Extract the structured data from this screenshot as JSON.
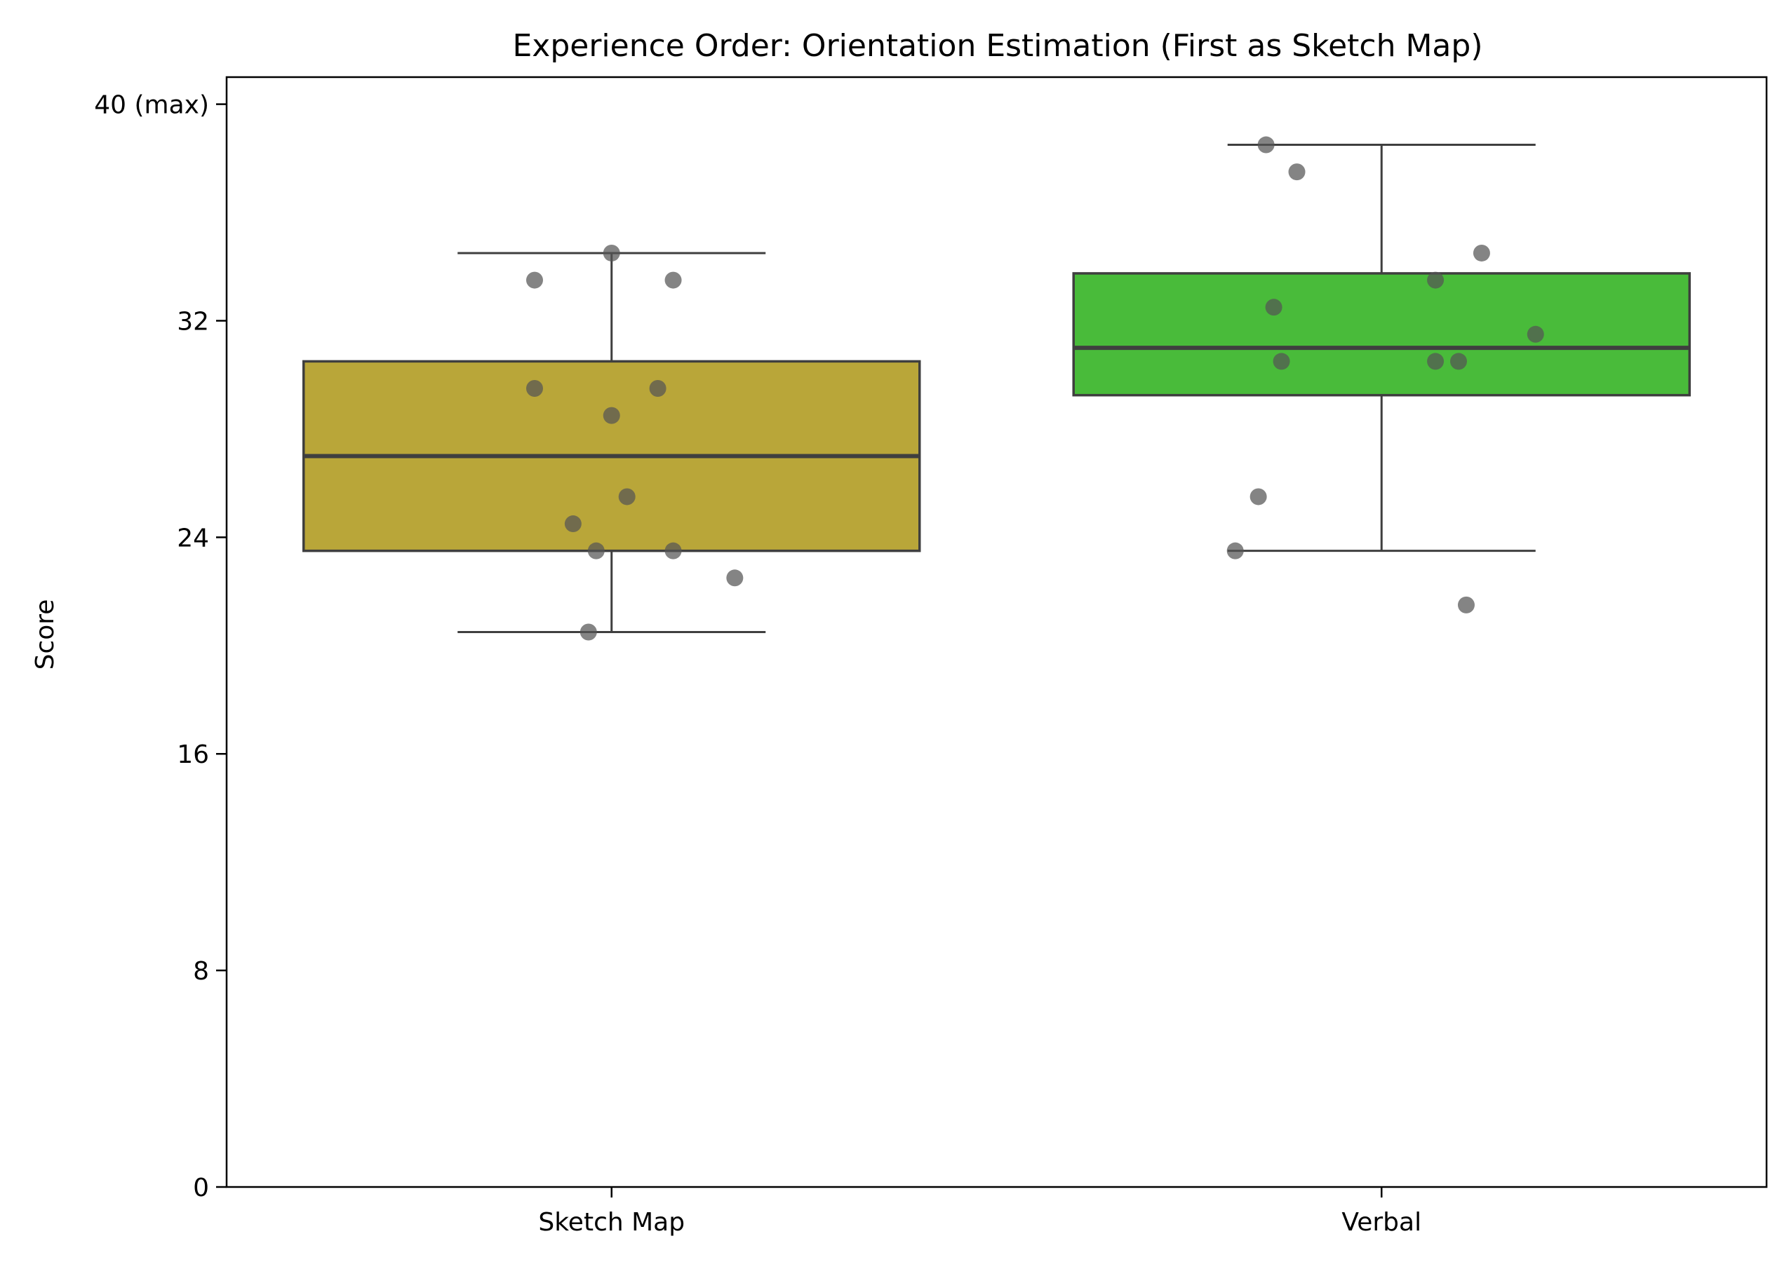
{
  "chart_data": {
    "type": "box",
    "title": "Experience Order: Orientation Estimation (First as Sketch Map)",
    "xlabel": "",
    "ylabel": "Score",
    "ylim": [
      0,
      41
    ],
    "yticks": [
      {
        "value": 0,
        "label": "0"
      },
      {
        "value": 8,
        "label": "8"
      },
      {
        "value": 16,
        "label": "16"
      },
      {
        "value": 24,
        "label": "24"
      },
      {
        "value": 32,
        "label": "32"
      },
      {
        "value": 40,
        "label": "40 (max)"
      }
    ],
    "categories": [
      "Sketch Map",
      "Verbal"
    ],
    "boxes": [
      {
        "category": "Sketch Map",
        "color": "#b9a639",
        "whisker_low": 20.5,
        "q1": 23.5,
        "median": 27.0,
        "q3": 30.5,
        "whisker_high": 34.5,
        "points": [
          {
            "offset": 0.0,
            "value": 34.5
          },
          {
            "offset": -0.1,
            "value": 33.5
          },
          {
            "offset": 0.08,
            "value": 33.5
          },
          {
            "offset": -0.1,
            "value": 29.5
          },
          {
            "offset": 0.06,
            "value": 29.5
          },
          {
            "offset": 0.0,
            "value": 28.5
          },
          {
            "offset": 0.02,
            "value": 25.5
          },
          {
            "offset": -0.05,
            "value": 24.5
          },
          {
            "offset": -0.02,
            "value": 23.5
          },
          {
            "offset": 0.08,
            "value": 23.5
          },
          {
            "offset": 0.16,
            "value": 22.5
          },
          {
            "offset": -0.03,
            "value": 20.5
          }
        ]
      },
      {
        "category": "Verbal",
        "color": "#49bb3a",
        "whisker_low": 23.5,
        "q1": 29.25,
        "median": 31.0,
        "q3": 33.75,
        "whisker_high": 38.5,
        "points": [
          {
            "offset": -0.15,
            "value": 38.5
          },
          {
            "offset": -0.11,
            "value": 37.5
          },
          {
            "offset": 0.13,
            "value": 34.5
          },
          {
            "offset": 0.07,
            "value": 33.5
          },
          {
            "offset": -0.14,
            "value": 32.5
          },
          {
            "offset": 0.2,
            "value": 31.5
          },
          {
            "offset": -0.13,
            "value": 30.5
          },
          {
            "offset": 0.07,
            "value": 30.5
          },
          {
            "offset": 0.1,
            "value": 30.5
          },
          {
            "offset": -0.16,
            "value": 25.5
          },
          {
            "offset": -0.19,
            "value": 23.5
          },
          {
            "offset": 0.11,
            "value": 21.5
          }
        ]
      }
    ],
    "point_color": "#555555",
    "grid": false,
    "legend": "none"
  }
}
